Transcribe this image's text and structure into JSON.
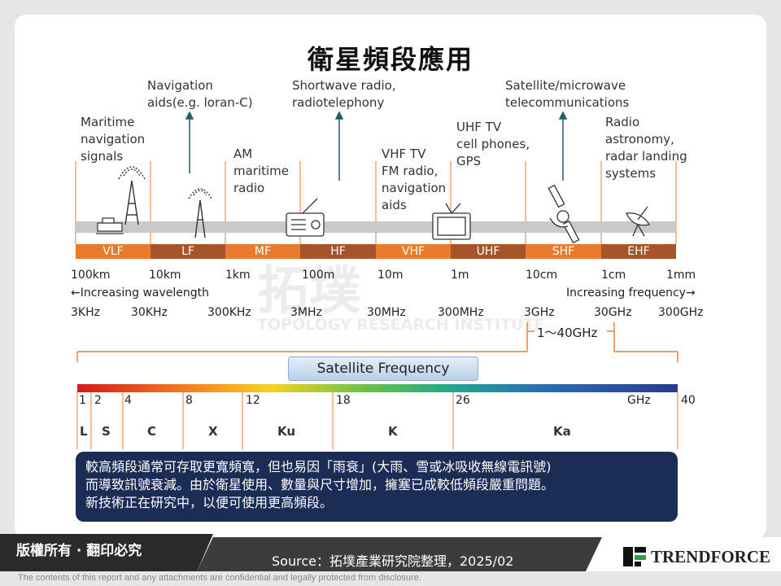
{
  "title": "衛星頻段應用",
  "applications": [
    {
      "key": "vlf",
      "text": "Maritime\nnavigation\nsignals"
    },
    {
      "key": "lf",
      "text": "Navigation\naids(e.g. loran-C)"
    },
    {
      "key": "mf",
      "text": "AM\nmaritime\nradio"
    },
    {
      "key": "hf",
      "text": "Shortwave radio,\nradiotelephony"
    },
    {
      "key": "vhf",
      "text": "VHF TV\nFM radio,\nnavigation\naids"
    },
    {
      "key": "uhf",
      "text": "UHF TV\ncell phones,\nGPS"
    },
    {
      "key": "shf",
      "text": "Satellite/microwave\ntelecommunications"
    },
    {
      "key": "ehf",
      "text": "Radio\nastronomy,\nradar landing\nsystems"
    }
  ],
  "bands": [
    "VLF",
    "LF",
    "MF",
    "HF",
    "VHF",
    "UHF",
    "SHF",
    "EHF"
  ],
  "band_colors": [
    "#e87b2c",
    "#a8542a",
    "#e87b2c",
    "#a8542a",
    "#e87b2c",
    "#a8542a",
    "#e87b2c",
    "#a8542a"
  ],
  "wavelengths": [
    "100km",
    "10km",
    "1km",
    "100m",
    "10m",
    "1m",
    "10cm",
    "1cm",
    "1mm"
  ],
  "wavelength_note": "←Increasing wavelength",
  "frequency_note": "Increasing frequency→",
  "frequencies": [
    "3KHz",
    "30KHz",
    "300KHz",
    "3MHz",
    "30MHz",
    "300MHz",
    "3GHz",
    "30GHz",
    "300GHz"
  ],
  "range_label": "1～40GHz",
  "satellite_label": "Satellite Frequency",
  "ghz_ticks": [
    "1",
    "2",
    "4",
    "8",
    "12",
    "18",
    "26",
    "40"
  ],
  "ghz_unit": "GHz",
  "sat_bands": [
    "L",
    "S",
    "C",
    "X",
    "Ku",
    "K",
    "Ka"
  ],
  "callout": "較高頻段通常可存取更寬頻寬，但也易因「雨衰」(大雨、雪或冰吸收無線電訊號)\n而導致訊號衰減。由於衛星使用、數量與尺寸增加，擁塞已成較低頻段嚴重問題。\n新技術正在研究中，以便可使用更高頻段。",
  "watermark": {
    "cn": "拓墣",
    "en": "TOPOLOGY RESEARCH INSTITUTE"
  },
  "footer": {
    "copyright": "版權所有 · 翻印必究",
    "source": "Source：拓墣產業研究院整理，2025/02",
    "brand": "TRENDFORCE",
    "disclaimer": "The contents of this report and any attachments are confidential and legally protected from disclosure."
  },
  "colors": {
    "accent": "#e87b2c",
    "accent_dark": "#a8542a",
    "callout_bg": "#1c2d55",
    "arrow": "#1f5f6b"
  }
}
